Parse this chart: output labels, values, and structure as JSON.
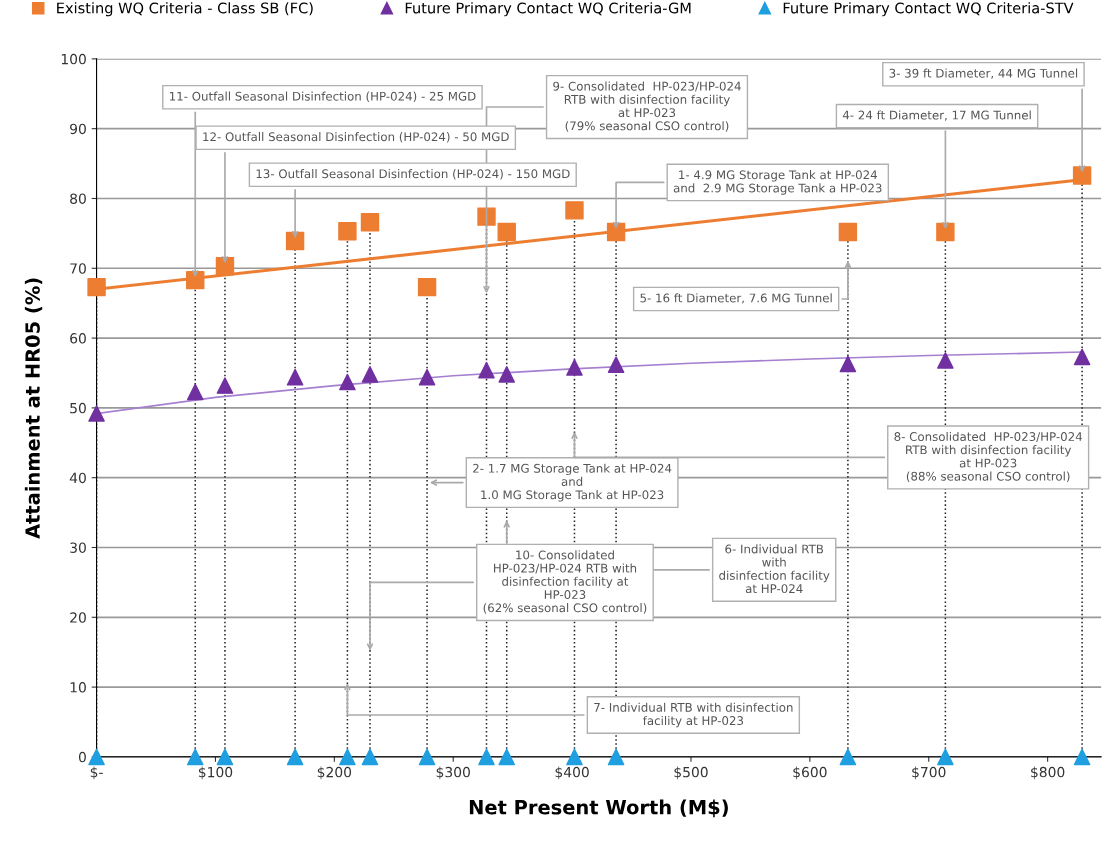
{
  "chart_data": {
    "type": "scatter",
    "xlabel": "Net Present Worth (M$)",
    "ylabel": "Attainment at HR05 (%)",
    "xlim": [
      0,
      845
    ],
    "xticks": [
      {
        "value": 0,
        "label": "$-"
      },
      {
        "value": 100,
        "label": "$100"
      },
      {
        "value": 200,
        "label": "$200"
      },
      {
        "value": 300,
        "label": "$300"
      },
      {
        "value": 400,
        "label": "$400"
      },
      {
        "value": 500,
        "label": "$500"
      },
      {
        "value": 600,
        "label": "$600"
      },
      {
        "value": 700,
        "label": "$700"
      },
      {
        "value": 800,
        "label": "$800"
      }
    ],
    "ylim": [
      0,
      100
    ],
    "yticks": [
      0,
      10,
      20,
      30,
      40,
      50,
      60,
      70,
      80,
      90,
      100
    ],
    "grid": "y",
    "legend": "top",
    "x": [
      0,
      83,
      108,
      167,
      211,
      230,
      278,
      328,
      345,
      402,
      437,
      632,
      714,
      829
    ],
    "series": [
      {
        "name": "Existing WQ Criteria - Class SB (FC)",
        "type": "lollipop",
        "line_style": "dotted",
        "color": "#ed7d31",
        "marker": "square",
        "values": [
          67.3,
          68.3,
          70.3,
          73.9,
          75.3,
          76.6,
          67.3,
          77.4,
          75.2,
          78.3,
          75.2,
          75.2,
          75.2,
          83.3
        ]
      },
      {
        "name": "Future Primary Contact WQ Criteria-GM",
        "color": "#7030a0",
        "marker": "triangle",
        "values": [
          49.2,
          52.3,
          53.2,
          54.4,
          53.7,
          54.8,
          54.4,
          55.4,
          54.8,
          55.8,
          56.2,
          56.3,
          56.8,
          57.3
        ]
      },
      {
        "name": "Future Primary Contact WQ Criteria-STV",
        "color": "#1f9fe0",
        "marker": "triangle",
        "values": [
          0,
          0,
          0,
          0,
          0,
          0,
          0,
          0,
          0,
          0,
          0,
          0,
          0,
          0
        ]
      },
      {
        "type": "line",
        "color": "#ed7d31",
        "marker": "none",
        "x": [
          0,
          829
        ],
        "values": [
          67.0,
          82.7
        ]
      },
      {
        "type": "line",
        "color": "#a57fd0",
        "marker": "none",
        "x": [
          0,
          100,
          200,
          300,
          400,
          500,
          600,
          700,
          829
        ],
        "values": [
          49.2,
          51.5,
          53.2,
          54.6,
          55.6,
          56.4,
          57.0,
          57.5,
          58.0
        ]
      }
    ],
    "annotations": [
      {
        "text": "1- 4.9 MG Storage Tank at HP-024\nand  2.9 MG Storage Tank a HP-023",
        "x": 437,
        "y": 75.2
      },
      "2- 1.7 MG Storage Tank at HP-024\nand\n1.0 MG Storage Tank at HP-023",
      {
        "text": "3- 39 ft Diameter, 44 MG Tunnel",
        "x": 829,
        "y": 83.3
      },
      {
        "text": "4- 24 ft Diameter, 17 MG Tunnel",
        "x": 714,
        "y": 75.2
      },
      "5- 16 ft Diameter, 7.6 MG Tunnel",
      "6- Individual RTB\nwith\ndisinfection facility\nat HP-024",
      "7- Individual RTB with disinfection\nfacility at HP-023",
      "8- Consolidated  HP-023/HP-024\nRTB with disinfection facility\nat HP-023\n(88% seasonal CSO control)",
      "9- Consolidated  HP-023/HP-024\nRTB with disinfection facility\nat HP-023\n(79% seasonal CSO control)",
      "10- Consolidated\nHP-023/HP-024 RTB with\ndisinfection facility at\nHP-023\n(62% seasonal CSO control)",
      {
        "text": "11- Outfall Seasonal Disinfection (HP-024) - 25 MGD",
        "x": 83,
        "y": 68.3
      },
      {
        "text": "12- Outfall Seasonal Disinfection (HP-024) - 50 MGD",
        "x": 108,
        "y": 70.3
      },
      {
        "text": "13- Outfall Seasonal Disinfection (HP-024) - 150 MGD",
        "x": 167,
        "y": 73.9
      }
    ]
  }
}
